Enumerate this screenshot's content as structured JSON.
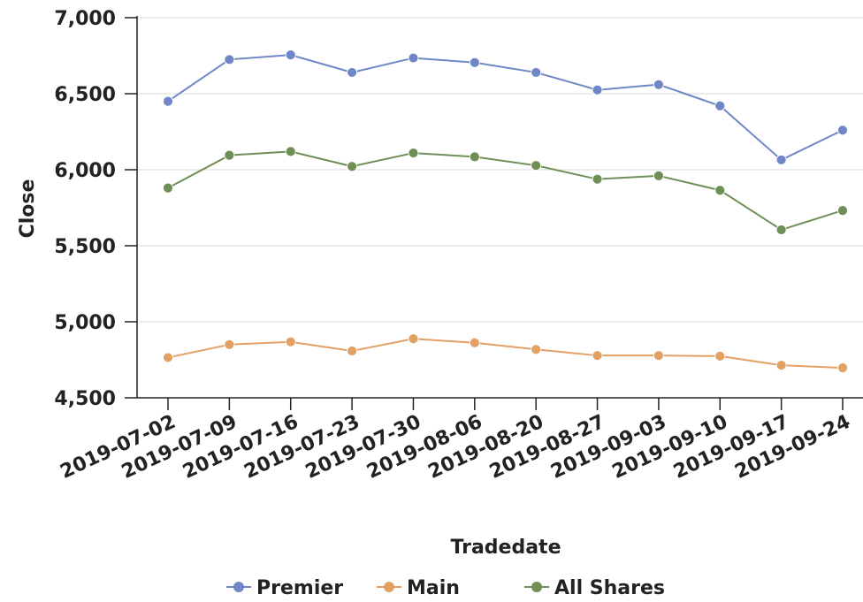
{
  "chart_data": {
    "type": "line",
    "xlabel": "Tradedate",
    "ylabel": "Close",
    "ylim": [
      4500,
      7000
    ],
    "yticks": [
      4500,
      5000,
      5500,
      6000,
      6500,
      7000
    ],
    "ytick_labels": [
      "4,500",
      "5,000",
      "5,500",
      "6,000",
      "6,500",
      "7,000"
    ],
    "grid": "horizontal",
    "legend_position": "bottom",
    "categories": [
      "2019-07-02",
      "2019-07-09",
      "2019-07-16",
      "2019-07-23",
      "2019-07-30",
      "2019-08-06",
      "2019-08-20",
      "2019-08-27",
      "2019-09-03",
      "2019-09-10",
      "2019-09-17",
      "2019-09-24"
    ],
    "series": [
      {
        "name": "Premier",
        "color": "#6f87c7",
        "values": [
          6450,
          6725,
          6755,
          6640,
          6735,
          6705,
          6640,
          6525,
          6560,
          6420,
          6065,
          6260
        ]
      },
      {
        "name": "Main",
        "color": "#e3a065",
        "values": [
          4765,
          4850,
          4868,
          4808,
          4888,
          4862,
          4818,
          4778,
          4778,
          4774,
          4714,
          4697
        ]
      },
      {
        "name": "All Shares",
        "color": "#6e8f55",
        "values": [
          5880,
          6095,
          6120,
          6022,
          6110,
          6085,
          6028,
          5938,
          5960,
          5865,
          5605,
          5732
        ]
      }
    ]
  }
}
